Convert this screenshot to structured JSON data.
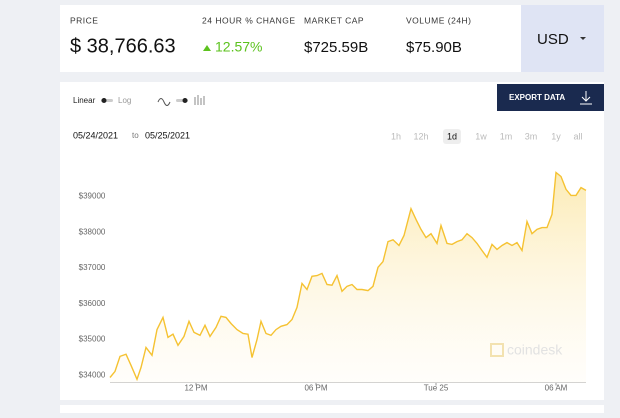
{
  "header": {
    "price_label": "PRICE",
    "price": "$ 38,766.63",
    "change_label": "24 HOUR % CHANGE",
    "change": "12.57%",
    "market_cap_label": "MARKET CAP",
    "market_cap": "$725.59B",
    "volume_label": "VOLUME (24H)",
    "volume": "$75.90B",
    "currency": "USD"
  },
  "controls": {
    "scale_options": [
      "Linear",
      "Log"
    ],
    "export": "EXPORT DATA",
    "date_from": "05/24/2021",
    "date_sep": "to",
    "date_to": "05/25/2021",
    "ranges": [
      "1h",
      "12h",
      "1d",
      "1w",
      "1m",
      "3m",
      "1y",
      "all"
    ],
    "selected": "1d"
  },
  "chart_data": {
    "type": "line",
    "color": "#f5c232",
    "x": [
      7.7,
      7.95,
      8.2,
      8.5,
      8.75,
      9.05,
      9.25,
      9.5,
      9.8,
      10.05,
      10.35,
      10.6,
      10.85,
      11.1,
      11.4,
      11.65,
      11.9,
      12.2,
      12.45,
      12.7,
      13,
      13.25,
      13.5,
      13.75,
      14.05,
      14.35,
      14.6,
      14.8,
      15.05,
      15.25,
      15.5,
      15.75,
      16,
      16.25,
      16.55,
      16.8,
      17.05,
      17.3,
      17.55,
      17.8,
      18.05,
      18.3,
      18.55,
      18.8,
      19.05,
      19.3,
      19.55,
      19.8,
      20.05,
      20.3,
      20.6,
      20.85,
      21.1,
      21.35,
      21.6,
      21.85,
      22.15,
      22.4,
      22.75,
      23,
      23.25,
      23.5,
      23.75,
      24.05,
      24.25,
      24.55,
      24.8,
      25.05,
      25.3,
      25.55,
      25.8,
      26.05,
      26.3,
      26.55,
      26.8,
      27.05,
      27.3,
      27.55,
      27.8,
      28.05,
      28.3,
      28.55,
      28.8,
      29.05,
      29.3,
      29.55,
      29.8,
      30,
      30.25,
      30.5,
      30.75,
      31,
      31.25,
      31.5
    ],
    "values": [
      33940,
      34110,
      34530,
      34590,
      34280,
      33890,
      34220,
      34780,
      34560,
      35280,
      35620,
      35060,
      35150,
      34840,
      35090,
      35510,
      35200,
      35120,
      35400,
      35090,
      35340,
      35650,
      35620,
      35450,
      35280,
      35170,
      35150,
      34500,
      35000,
      35510,
      35170,
      35120,
      35280,
      35370,
      35420,
      35560,
      35900,
      36570,
      36400,
      36770,
      36790,
      36850,
      36540,
      36520,
      36790,
      36350,
      36490,
      36540,
      36400,
      36400,
      36370,
      36490,
      37020,
      37180,
      37740,
      37790,
      37630,
      37910,
      38660,
      38360,
      38080,
      37850,
      37960,
      37690,
      38190,
      37690,
      37660,
      37740,
      37790,
      37960,
      37850,
      37690,
      37490,
      37300,
      37660,
      37520,
      37630,
      37710,
      37630,
      37710,
      37490,
      38300,
      37960,
      38080,
      38130,
      38130,
      38500,
      39670,
      39560,
      39200,
      39030,
      39030,
      39250,
      39170
    ],
    "xlim": [
      7.7,
      31.5
    ],
    "ylim": [
      33800,
      40300
    ],
    "xticks": [
      {
        "value": 12,
        "label": "12 PM"
      },
      {
        "value": 18,
        "label": "06 PM"
      },
      {
        "value": 24,
        "label": "Tue 25"
      },
      {
        "value": 30,
        "label": "06 AM"
      }
    ],
    "yticks": [
      {
        "value": 34000,
        "label": "$34000"
      },
      {
        "value": 35000,
        "label": "$35000"
      },
      {
        "value": 36000,
        "label": "$36000"
      },
      {
        "value": 37000,
        "label": "$37000"
      },
      {
        "value": 38000,
        "label": "$38000"
      },
      {
        "value": 39000,
        "label": "$39000"
      }
    ],
    "watermark": "coindesk"
  }
}
